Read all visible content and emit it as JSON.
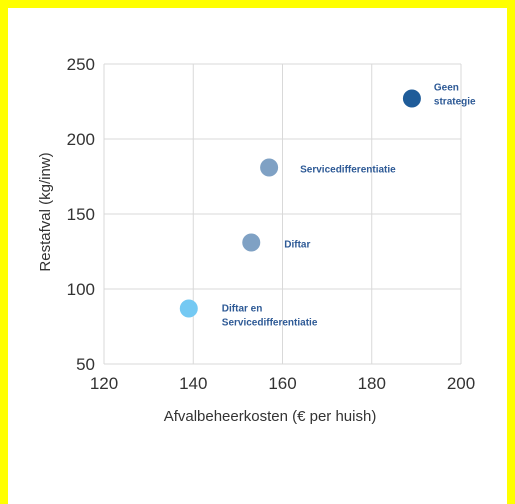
{
  "chart_data": {
    "type": "scatter",
    "title": "",
    "xlabel": "Afvalbeheerkosten (€ per huish)",
    "ylabel": "Restafval (kg/inw)",
    "xlim": [
      120,
      200
    ],
    "ylim": [
      50,
      250
    ],
    "xticks": [
      "120",
      "140",
      "160",
      "180",
      "200"
    ],
    "yticks": [
      "50",
      "100",
      "150",
      "200",
      "250"
    ],
    "grid": true,
    "legend": "none",
    "points": [
      {
        "label_lines": [
          "Geen",
          "strategie"
        ],
        "x": 189,
        "y": 227,
        "color": "#1f5c99"
      },
      {
        "label_lines": [
          "Servicedifferentiatie"
        ],
        "x": 157,
        "y": 181,
        "color": "#7fa1c4"
      },
      {
        "label_lines": [
          "Diftar"
        ],
        "x": 153,
        "y": 131,
        "color": "#7fa1c4"
      },
      {
        "label_lines": [
          "Diftar en",
          "Servicedifferentiatie"
        ],
        "x": 139,
        "y": 87,
        "color": "#74c9f3"
      }
    ]
  }
}
